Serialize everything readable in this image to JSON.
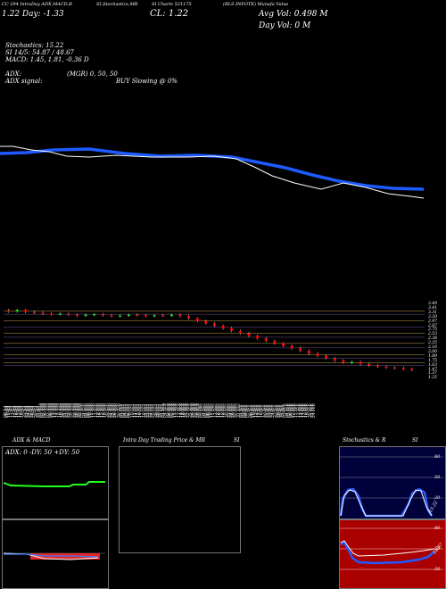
{
  "header": {
    "line1_left": "CC 294 IntraDay ADX,MACD,B",
    "line1_mid1": "SI,Stochastics,MR",
    "line1_mid2": "SI Charts 521175",
    "line1_right": "(RLS INFOTE) Munafa Value",
    "day_change": "1.22 Day: -1.33",
    "close_price": "CL: 1.22",
    "avg_vol": "Avg Vol: 0.498  M",
    "day_vol": "Day Vol: 0  M"
  },
  "indicators": {
    "stochastics": "Stochastics: 15.22",
    "si": "SI 14/5: 54.87 / 48.67",
    "macd": "MACD: 1.45,  1.81,  -0.36  D",
    "adx": "ADX:",
    "mgr": "(MGR) 0,  50,  50",
    "adx_signal": "ADX  signal:",
    "buy_slowing": "BUY Slowing @ 0%"
  },
  "price_axis": [
    "3.49",
    "3.41",
    "3.31",
    "3.20",
    "2.97",
    "2.87",
    "2.75",
    "2.53",
    "2.38",
    "2.25",
    "2.16",
    "2.00",
    "1.89",
    "1.75",
    "1.63",
    "1.47",
    "1.37",
    "1.25"
  ],
  "date_labels": [
    "08 Jul",
    "09 Jul",
    "10 Jul",
    "11 Jul",
    "12 Jul",
    "15 Jul",
    "16 Jul",
    "17 Jul",
    "18 Jul",
    "19 Jul",
    "22 Jul",
    "23 Jul",
    "24 Jul",
    "25 Jul",
    "26 Jul",
    "29 Jul",
    "30 Jul",
    "31 Jul",
    "01 Aug",
    "02 Aug",
    "05 Aug",
    "06 Aug",
    "07 Aug",
    "08 Aug",
    "09 Aug",
    "12 Aug",
    "13 Aug",
    "14 Aug",
    "16 Aug",
    "19 Aug",
    "20 Aug",
    "21 Aug",
    "22 Aug",
    "23 Aug",
    "26 Aug",
    "27 Aug",
    "28 Aug",
    "29 Aug",
    "30 Aug",
    "02 Sep",
    "03 Sep",
    "04 Sep",
    "05 Sep",
    "06 Sep",
    "09 Sep",
    "10 Sep",
    "11 Sep",
    "12 Sep",
    "13 Sep",
    "16 Sep",
    "17 Sep",
    "18 Sep",
    "19 Sep",
    "20 Sep",
    "23 Sep",
    "24 Sep",
    "25 Sep",
    "26 Sep",
    "27 Sep",
    "30 Sep",
    "01 Oct",
    "03 Oct",
    "04 Oct",
    "07 Oct",
    "08 Oct",
    "09 Oct",
    "10 Oct",
    "11 Oct",
    "14 Oct",
    "15 Oct",
    "16 Oct",
    "17 Oct",
    "18 Oct",
    "21 Oct",
    "22 Oct",
    "23 Oct",
    "24 Oct",
    "25 Oct",
    "28 Oct",
    "29 Oct",
    "30 Oct",
    "31 Oct",
    "01 Nov",
    "04 Nov",
    "05 Nov",
    "06 Nov",
    "07 Nov",
    "08 Nov",
    "11 Nov",
    "12 Nov",
    "13 Nov",
    "14 Nov",
    "18 Nov",
    "19 Nov",
    "21 Nov",
    "22 Nov",
    "25 Nov",
    "26 Nov",
    "27 Nov",
    "28 Nov",
    "29 Nov",
    "02 Dec",
    "03 Dec",
    "04 Dec",
    "05 Dec",
    "06 Dec",
    "09 Dec",
    "10 Dec",
    "11 Dec",
    "12 Dec",
    "13 Dec",
    "16 Dec",
    "17 Dec",
    "18 Dec",
    "19 Dec",
    "20 Dec",
    "23 Dec",
    "24 Dec",
    "26 Dec",
    "27 Dec",
    "30 Dec",
    "31 Dec",
    "01 Jan",
    "02 Jan",
    "03 Jan",
    "06 Jan",
    "07 Jan",
    "08 Jan",
    "09 Jan",
    "10 Jan",
    "13 Jan",
    "14 Jan",
    "15 Jan",
    "16 Jan",
    "17 Jan",
    "20 Jan",
    "21 Jan",
    "22 Jan",
    "23 Jan",
    "24 Jan",
    "27 Jan",
    "28 Jan",
    "29 Jan",
    "30 Jan",
    "31 Jan",
    "03 Feb",
    "04 Feb",
    "05 Feb",
    "06 Feb",
    "07 Feb",
    "10 Feb",
    "11 Feb",
    "12 Feb",
    "13 Feb",
    "14 Feb",
    "17 Feb",
    "18 Feb",
    "19 Feb",
    "20 Feb",
    "21 Feb",
    "24 Feb"
  ],
  "panels": {
    "adx_title": "ADX  & MACD",
    "adx_values": "ADX: 0  -DY: 50  +DY: 50",
    "intraday_title": "Intra  Day Trading Price  & MR",
    "intraday_si": "SI",
    "stoch_title": "Stochastics & R",
    "stoch_si": "SI",
    "stoch_ticks": [
      "80",
      "50",
      "20"
    ],
    "stoch_value": "15.22",
    "rsi_ticks": [
      "80",
      "50",
      "20"
    ],
    "rsi_value": "54.87"
  },
  "chart_data": {
    "type": "line",
    "series": [],
    "note_colors": {
      "up": "#00ff00",
      "down": "#ff0000",
      "ma": "#1e5bff"
    },
    "price_candles_first": [
      3.3,
      3.35,
      3.28,
      3.25,
      3.22,
      3.2,
      3.22,
      3.18,
      3.15,
      3.18,
      3.2,
      3.16,
      3.14,
      3.15,
      3.18,
      3.17,
      3.14,
      3.16,
      3.15,
      3.18,
      3.14
    ],
    "price_candles_last": [
      1.63,
      1.55,
      1.47,
      1.5,
      1.42,
      1.37,
      1.33,
      1.3,
      1.28,
      1.25,
      1.22
    ],
    "ma_values_overview": [
      2.0,
      2.0,
      2.1,
      2.1,
      2.2,
      2.1,
      2.1,
      2.0,
      1.9,
      1.7,
      1.5,
      1.4,
      1.3,
      1.2,
      1.2
    ]
  },
  "colors": {
    "background": "#000000",
    "blue_line": "#1e5bff",
    "white_line": "#ffffff",
    "grid_orange": "#c8a050",
    "stoch_bg": "#00003a",
    "rsi_bg": "#aa0000",
    "green": "#00ff00",
    "red": "#ff0000"
  }
}
